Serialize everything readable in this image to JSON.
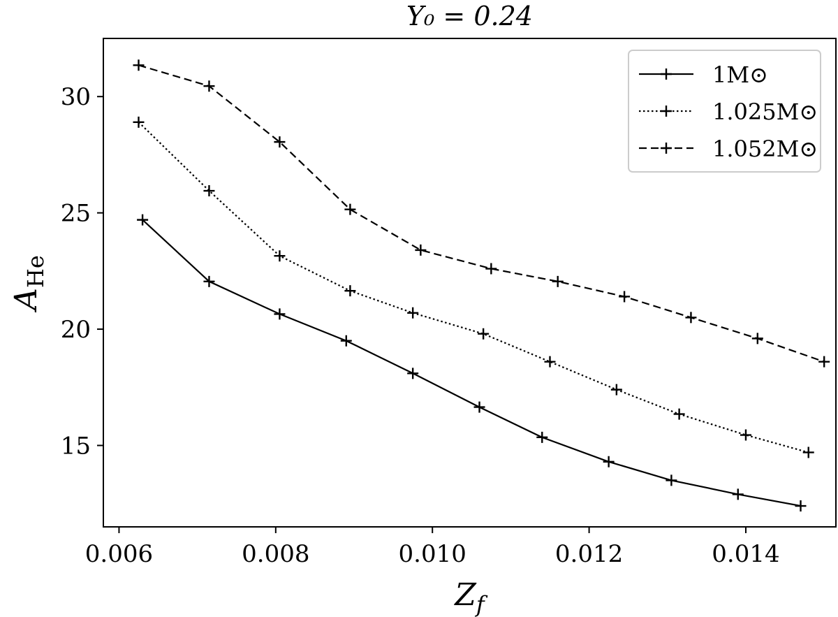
{
  "chart_data": {
    "type": "line",
    "title": "Y₀ = 0.24",
    "xlabel": "Z_f",
    "ylabel": "A_He",
    "xlim": [
      0.0058,
      0.01515
    ],
    "ylim": [
      11.5,
      32.5
    ],
    "xticks": [
      0.006,
      0.008,
      0.01,
      0.012,
      0.014
    ],
    "xtick_labels": [
      "0.006",
      "0.008",
      "0.010",
      "0.012",
      "0.014"
    ],
    "yticks": [
      15,
      20,
      25,
      30
    ],
    "ytick_labels": [
      "15",
      "20",
      "25",
      "30"
    ],
    "grid": false,
    "legend_position": "top-right",
    "marker": "+",
    "series": [
      {
        "name": "1M⊙",
        "linestyle": "solid",
        "x": [
          0.0063,
          0.00715,
          0.00805,
          0.0089,
          0.00975,
          0.0106,
          0.0114,
          0.01225,
          0.01305,
          0.0139,
          0.0147
        ],
        "y": [
          24.7,
          22.05,
          20.65,
          19.5,
          18.1,
          16.65,
          15.35,
          14.3,
          13.5,
          12.9,
          12.4
        ]
      },
      {
        "name": "1.025M⊙",
        "linestyle": "dotted",
        "x": [
          0.00625,
          0.00715,
          0.00805,
          0.00895,
          0.00975,
          0.01065,
          0.0115,
          0.01235,
          0.01315,
          0.014,
          0.0148
        ],
        "y": [
          28.9,
          25.95,
          23.15,
          21.65,
          20.7,
          19.8,
          18.6,
          17.4,
          16.35,
          15.45,
          14.7
        ]
      },
      {
        "name": "1.052M⊙",
        "linestyle": "dashed",
        "x": [
          0.00625,
          0.00715,
          0.00805,
          0.00895,
          0.00985,
          0.01075,
          0.0116,
          0.01245,
          0.0133,
          0.01415,
          0.015
        ],
        "y": [
          31.35,
          30.45,
          28.05,
          25.15,
          23.4,
          22.6,
          22.05,
          21.4,
          20.5,
          19.6,
          18.6
        ]
      }
    ]
  }
}
